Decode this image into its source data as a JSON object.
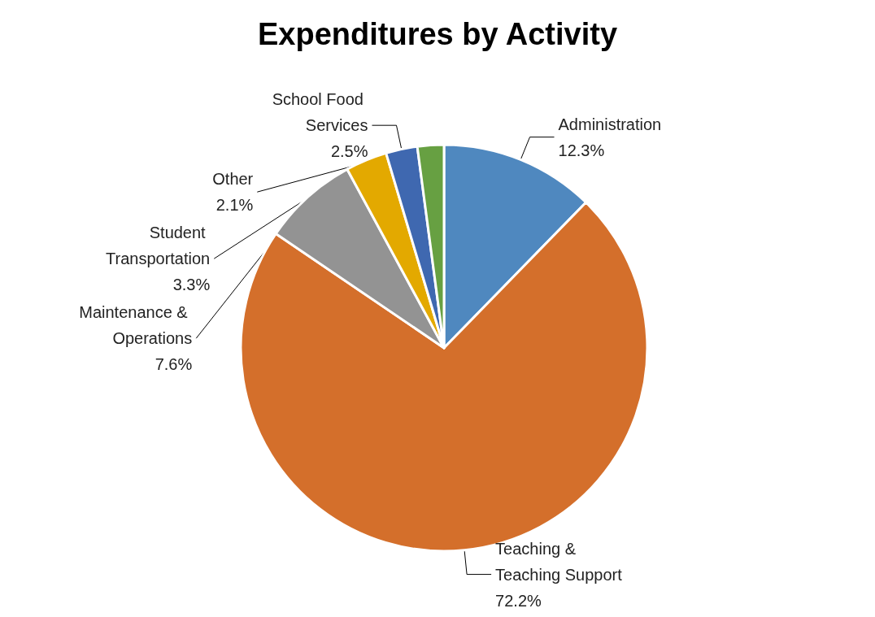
{
  "chart_data": {
    "type": "pie",
    "title": "Expenditures by Activity",
    "categories": [
      "Administration",
      "Teaching & Teaching Support",
      "Maintenance & Operations",
      "Student Transportation",
      "School Food Services",
      "Other"
    ],
    "values": [
      12.3,
      72.2,
      7.6,
      3.3,
      2.5,
      2.1
    ],
    "value_labels": [
      "12.3%",
      "72.2%",
      "7.6%",
      "3.3%",
      "2.5%",
      "2.1%"
    ],
    "colors": [
      "#4f88bf",
      "#d46f2b",
      "#939393",
      "#e3a900",
      "#3f68b0",
      "#67a042"
    ]
  }
}
